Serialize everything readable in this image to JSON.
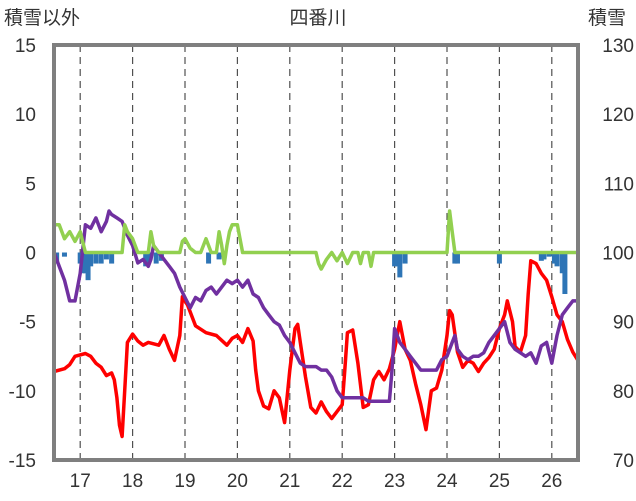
{
  "chart_data": {
    "type": "line",
    "title": "四番川",
    "ylabel_left": "積雪以外",
    "ylabel_right": "積雪",
    "x_ticks": [
      "17",
      "18",
      "19",
      "20",
      "21",
      "22",
      "23",
      "24",
      "25",
      "26"
    ],
    "xlim": [
      16.5,
      26.5
    ],
    "ylim_left": [
      -15,
      15
    ],
    "ylim_right": [
      70,
      130
    ],
    "y_ticks_left": [
      "15",
      "10",
      "5",
      "0",
      "-5",
      "-10",
      "-15"
    ],
    "y_ticks_right": [
      "130",
      "120",
      "110",
      "100",
      "90",
      "80",
      "70"
    ],
    "grid": "vertical dashed at each day",
    "legend": "none",
    "colors": {
      "red_series": "#ff0000",
      "purple_series": "#7030a0",
      "green_series": "#92d050",
      "bars": "#2e75b6",
      "frame": "#7f7f7f"
    },
    "series": [
      {
        "axis": "left",
        "color_key": "red_series",
        "points": [
          [
            16.5,
            -8.6
          ],
          [
            16.7,
            -8.4
          ],
          [
            16.8,
            -8.1
          ],
          [
            16.9,
            -7.5
          ],
          [
            17.1,
            -7.3
          ],
          [
            17.2,
            -7.5
          ],
          [
            17.3,
            -8.0
          ],
          [
            17.4,
            -8.3
          ],
          [
            17.5,
            -8.9
          ],
          [
            17.6,
            -8.7
          ],
          [
            17.65,
            -9.2
          ],
          [
            17.7,
            -10.5
          ],
          [
            17.75,
            -12.5
          ],
          [
            17.8,
            -13.3
          ],
          [
            17.85,
            -10.0
          ],
          [
            17.9,
            -6.5
          ],
          [
            18.0,
            -5.9
          ],
          [
            18.1,
            -6.4
          ],
          [
            18.2,
            -6.7
          ],
          [
            18.3,
            -6.5
          ],
          [
            18.4,
            -6.6
          ],
          [
            18.5,
            -6.7
          ],
          [
            18.6,
            -6.0
          ],
          [
            18.7,
            -7.0
          ],
          [
            18.8,
            -7.8
          ],
          [
            18.9,
            -6.0
          ],
          [
            18.95,
            -3.2
          ],
          [
            19.05,
            -3.8
          ],
          [
            19.2,
            -5.3
          ],
          [
            19.4,
            -5.8
          ],
          [
            19.6,
            -6.0
          ],
          [
            19.8,
            -6.7
          ],
          [
            19.9,
            -6.2
          ],
          [
            20.0,
            -6.0
          ],
          [
            20.1,
            -6.5
          ],
          [
            20.2,
            -5.5
          ],
          [
            20.3,
            -6.4
          ],
          [
            20.35,
            -8.5
          ],
          [
            20.4,
            -10.0
          ],
          [
            20.5,
            -11.1
          ],
          [
            20.6,
            -11.3
          ],
          [
            20.7,
            -10.0
          ],
          [
            20.8,
            -10.5
          ],
          [
            20.9,
            -12.3
          ],
          [
            21.0,
            -8.5
          ],
          [
            21.1,
            -5.5
          ],
          [
            21.15,
            -5.2
          ],
          [
            21.2,
            -6.5
          ],
          [
            21.3,
            -9.0
          ],
          [
            21.4,
            -11.2
          ],
          [
            21.5,
            -11.6
          ],
          [
            21.6,
            -10.8
          ],
          [
            21.7,
            -11.5
          ],
          [
            21.8,
            -12.0
          ],
          [
            21.9,
            -11.5
          ],
          [
            22.0,
            -11.0
          ],
          [
            22.05,
            -8.5
          ],
          [
            22.1,
            -5.8
          ],
          [
            22.2,
            -5.6
          ],
          [
            22.3,
            -8.0
          ],
          [
            22.4,
            -11.2
          ],
          [
            22.5,
            -11.0
          ],
          [
            22.6,
            -9.2
          ],
          [
            22.7,
            -8.6
          ],
          [
            22.8,
            -9.2
          ],
          [
            22.9,
            -8.4
          ],
          [
            23.0,
            -7.0
          ],
          [
            23.05,
            -6.0
          ],
          [
            23.1,
            -5.0
          ],
          [
            23.2,
            -7.0
          ],
          [
            23.3,
            -7.8
          ],
          [
            23.4,
            -9.5
          ],
          [
            23.5,
            -11.0
          ],
          [
            23.6,
            -12.8
          ],
          [
            23.7,
            -10.0
          ],
          [
            23.8,
            -9.8
          ],
          [
            23.9,
            -8.5
          ],
          [
            24.0,
            -6.0
          ],
          [
            24.05,
            -4.2
          ],
          [
            24.1,
            -4.5
          ],
          [
            24.2,
            -7.2
          ],
          [
            24.3,
            -8.3
          ],
          [
            24.4,
            -7.8
          ],
          [
            24.5,
            -8.0
          ],
          [
            24.6,
            -8.6
          ],
          [
            24.7,
            -8.0
          ],
          [
            24.8,
            -7.6
          ],
          [
            24.9,
            -7.0
          ],
          [
            25.0,
            -5.5
          ],
          [
            25.1,
            -4.5
          ],
          [
            25.15,
            -3.5
          ],
          [
            25.25,
            -5.0
          ],
          [
            25.3,
            -6.8
          ],
          [
            25.4,
            -7.2
          ],
          [
            25.5,
            -6.0
          ],
          [
            25.55,
            -3.0
          ],
          [
            25.6,
            -0.6
          ],
          [
            25.7,
            -0.8
          ],
          [
            25.8,
            -1.5
          ],
          [
            25.9,
            -2.0
          ],
          [
            26.0,
            -3.2
          ],
          [
            26.1,
            -4.5
          ],
          [
            26.2,
            -5.0
          ],
          [
            26.3,
            -6.3
          ],
          [
            26.4,
            -7.2
          ],
          [
            26.5,
            -7.8
          ]
        ]
      },
      {
        "axis": "right",
        "color_key": "purple_series",
        "points": [
          [
            16.5,
            100.0
          ],
          [
            16.6,
            98.0
          ],
          [
            16.7,
            96.0
          ],
          [
            16.8,
            93.0
          ],
          [
            16.9,
            93.0
          ],
          [
            17.0,
            97.0
          ],
          [
            17.1,
            104.0
          ],
          [
            17.2,
            103.5
          ],
          [
            17.3,
            105.0
          ],
          [
            17.4,
            103.0
          ],
          [
            17.5,
            104.5
          ],
          [
            17.55,
            106.0
          ],
          [
            17.6,
            105.5
          ],
          [
            17.7,
            105.0
          ],
          [
            17.8,
            104.5
          ],
          [
            17.9,
            102.5
          ],
          [
            18.0,
            101.0
          ],
          [
            18.1,
            98.5
          ],
          [
            18.2,
            99.0
          ],
          [
            18.3,
            98.0
          ],
          [
            18.35,
            99.0
          ],
          [
            18.4,
            101.0
          ],
          [
            18.5,
            100.0
          ],
          [
            18.6,
            99.0
          ],
          [
            18.7,
            98.0
          ],
          [
            18.8,
            97.0
          ],
          [
            18.9,
            95.0
          ],
          [
            19.0,
            93.5
          ],
          [
            19.1,
            92.0
          ],
          [
            19.2,
            93.5
          ],
          [
            19.3,
            93.0
          ],
          [
            19.4,
            94.5
          ],
          [
            19.5,
            95.0
          ],
          [
            19.6,
            94.0
          ],
          [
            19.7,
            95.0
          ],
          [
            19.8,
            96.0
          ],
          [
            19.9,
            95.5
          ],
          [
            20.0,
            96.0
          ],
          [
            20.1,
            95.0
          ],
          [
            20.2,
            96.0
          ],
          [
            20.3,
            94.0
          ],
          [
            20.4,
            93.5
          ],
          [
            20.5,
            92.0
          ],
          [
            20.6,
            91.0
          ],
          [
            20.7,
            90.0
          ],
          [
            20.8,
            89.5
          ],
          [
            20.9,
            88.0
          ],
          [
            21.0,
            87.0
          ],
          [
            21.1,
            85.5
          ],
          [
            21.2,
            84.0
          ],
          [
            21.3,
            83.5
          ],
          [
            21.4,
            83.5
          ],
          [
            21.5,
            83.5
          ],
          [
            21.6,
            83.0
          ],
          [
            21.7,
            83.0
          ],
          [
            21.8,
            82.0
          ],
          [
            21.9,
            80.0
          ],
          [
            22.0,
            79.0
          ],
          [
            22.1,
            79.0
          ],
          [
            22.2,
            79.0
          ],
          [
            22.3,
            79.0
          ],
          [
            22.4,
            79.0
          ],
          [
            22.5,
            78.5
          ],
          [
            22.6,
            78.5
          ],
          [
            22.7,
            78.5
          ],
          [
            22.8,
            78.5
          ],
          [
            22.9,
            78.5
          ],
          [
            22.95,
            83.0
          ],
          [
            23.0,
            89.0
          ],
          [
            23.1,
            87.0
          ],
          [
            23.2,
            86.0
          ],
          [
            23.3,
            85.0
          ],
          [
            23.4,
            84.0
          ],
          [
            23.5,
            83.0
          ],
          [
            23.6,
            83.0
          ],
          [
            23.7,
            83.0
          ],
          [
            23.8,
            83.0
          ],
          [
            23.9,
            84.5
          ],
          [
            24.0,
            85.0
          ],
          [
            24.1,
            87.0
          ],
          [
            24.15,
            88.0
          ],
          [
            24.2,
            86.0
          ],
          [
            24.3,
            85.0
          ],
          [
            24.4,
            84.5
          ],
          [
            24.5,
            85.0
          ],
          [
            24.6,
            85.0
          ],
          [
            24.7,
            85.5
          ],
          [
            24.8,
            87.0
          ],
          [
            24.9,
            88.0
          ],
          [
            25.0,
            89.0
          ],
          [
            25.1,
            90.0
          ],
          [
            25.2,
            87.0
          ],
          [
            25.3,
            86.0
          ],
          [
            25.4,
            85.5
          ],
          [
            25.5,
            85.0
          ],
          [
            25.6,
            85.5
          ],
          [
            25.7,
            84.0
          ],
          [
            25.8,
            86.5
          ],
          [
            25.9,
            87.0
          ],
          [
            26.0,
            84.0
          ],
          [
            26.1,
            88.0
          ],
          [
            26.2,
            91.0
          ],
          [
            26.3,
            92.0
          ],
          [
            26.4,
            93.0
          ],
          [
            26.5,
            93.0
          ]
        ]
      },
      {
        "axis": "left",
        "color_key": "green_series",
        "points": [
          [
            16.5,
            2.0
          ],
          [
            16.6,
            2.0
          ],
          [
            16.7,
            1.0
          ],
          [
            16.8,
            1.5
          ],
          [
            16.9,
            0.8
          ],
          [
            17.0,
            1.5
          ],
          [
            17.1,
            0.0
          ],
          [
            17.8,
            0.0
          ],
          [
            17.85,
            2.0
          ],
          [
            17.9,
            1.5
          ],
          [
            18.0,
            1.0
          ],
          [
            18.1,
            0.0
          ],
          [
            18.3,
            0.0
          ],
          [
            18.35,
            1.5
          ],
          [
            18.4,
            0.5
          ],
          [
            18.5,
            0.0
          ],
          [
            18.9,
            0.0
          ],
          [
            18.95,
            0.8
          ],
          [
            19.0,
            1.0
          ],
          [
            19.1,
            0.3
          ],
          [
            19.2,
            0.0
          ],
          [
            19.3,
            0.0
          ],
          [
            19.4,
            1.0
          ],
          [
            19.5,
            0.0
          ],
          [
            19.6,
            0.0
          ],
          [
            19.65,
            1.5
          ],
          [
            19.7,
            0.5
          ],
          [
            19.75,
            -0.8
          ],
          [
            19.8,
            0.5
          ],
          [
            19.85,
            1.5
          ],
          [
            19.9,
            2.0
          ],
          [
            20.0,
            2.0
          ],
          [
            20.05,
            1.0
          ],
          [
            20.1,
            0.0
          ],
          [
            21.5,
            0.0
          ],
          [
            21.55,
            -0.8
          ],
          [
            21.6,
            -1.2
          ],
          [
            21.7,
            -0.5
          ],
          [
            21.8,
            0.0
          ],
          [
            21.9,
            -0.6
          ],
          [
            22.0,
            0.0
          ],
          [
            22.1,
            -0.8
          ],
          [
            22.2,
            0.0
          ],
          [
            22.3,
            0.0
          ],
          [
            22.35,
            -0.8
          ],
          [
            22.4,
            0.0
          ],
          [
            22.5,
            0.0
          ],
          [
            22.55,
            -1.0
          ],
          [
            22.6,
            0.0
          ],
          [
            24.0,
            0.0
          ],
          [
            24.05,
            3.0
          ],
          [
            24.1,
            1.5
          ],
          [
            24.15,
            0.0
          ],
          [
            26.5,
            0.0
          ]
        ]
      }
    ],
    "bars": [
      [
        16.55,
        -0.8
      ],
      [
        16.7,
        -0.3
      ],
      [
        17.0,
        -0.8
      ],
      [
        17.05,
        -1.5
      ],
      [
        17.1,
        -1.5
      ],
      [
        17.15,
        -2.0
      ],
      [
        17.2,
        -1.0
      ],
      [
        17.3,
        -0.8
      ],
      [
        17.4,
        -0.8
      ],
      [
        17.5,
        -0.5
      ],
      [
        17.6,
        -0.8
      ],
      [
        18.25,
        -1.0
      ],
      [
        18.3,
        -0.8
      ],
      [
        18.45,
        -0.8
      ],
      [
        18.55,
        -0.6
      ],
      [
        19.45,
        -0.8
      ],
      [
        19.65,
        -0.5
      ],
      [
        23.0,
        -1.0
      ],
      [
        23.05,
        -1.0
      ],
      [
        23.1,
        -1.8
      ],
      [
        23.2,
        -0.8
      ],
      [
        24.15,
        -0.8
      ],
      [
        24.2,
        -0.8
      ],
      [
        25.0,
        -0.8
      ],
      [
        25.8,
        -0.6
      ],
      [
        25.85,
        -0.5
      ],
      [
        25.95,
        -0.3
      ],
      [
        26.05,
        -0.8
      ],
      [
        26.1,
        -1.0
      ],
      [
        26.2,
        -1.5
      ],
      [
        26.25,
        -3.0
      ]
    ]
  }
}
